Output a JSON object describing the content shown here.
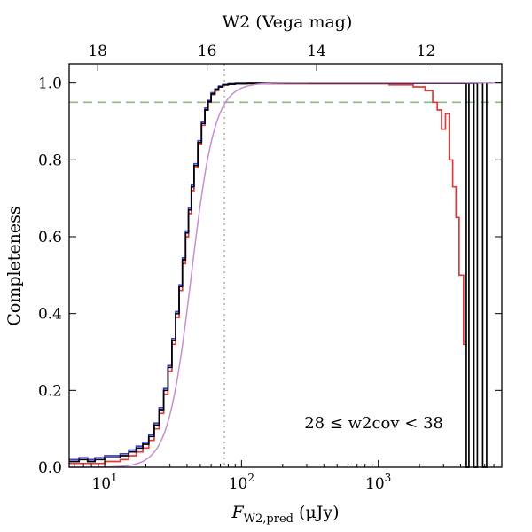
{
  "chart_data": {
    "type": "line",
    "xscale": "log",
    "xlim": [
      5.5,
      8000
    ],
    "ylim": [
      0,
      1.05
    ],
    "xlabel": "F",
    "xlabel_sub": "W2,pred",
    "xlabel_unit": " (μJy)",
    "ylabel": "Completeness",
    "top_axis_label": "W2 (Vega mag)",
    "annotation": "28 ≤ w2cov < 38",
    "x_ticks": [
      {
        "value": 10,
        "base": "10",
        "exp": "1"
      },
      {
        "value": 100,
        "base": "10",
        "exp": "2"
      },
      {
        "value": 1000,
        "base": "10",
        "exp": "3"
      }
    ],
    "y_ticks": [
      "0.0",
      "0.2",
      "0.4",
      "0.6",
      "0.8",
      "1.0"
    ],
    "top_ticks": [
      {
        "label": "18",
        "flux": 8.89
      },
      {
        "label": "16",
        "flux": 56.1
      },
      {
        "label": "14",
        "flux": 354
      },
      {
        "label": "12",
        "flux": 2233
      }
    ],
    "hlines": [
      {
        "y": 0.95,
        "style": "dashed",
        "color": "#8fba7f"
      }
    ],
    "vlines": [
      {
        "x": 75,
        "style": "dotted",
        "color": "#b8b2a8"
      }
    ],
    "series": [
      {
        "color": "#e03a3a",
        "style": "step",
        "x": [
          5.5,
          6.5,
          7.5,
          8.5,
          10,
          12,
          13,
          15,
          17,
          19,
          21,
          23,
          25,
          27,
          29,
          31,
          33,
          35,
          37,
          39,
          41,
          43,
          45,
          48,
          51,
          54,
          57,
          60,
          64,
          68,
          73,
          80,
          90,
          110,
          150,
          300,
          700,
          1200,
          1800,
          2200,
          2500,
          2700,
          2900,
          3100,
          3300,
          3500,
          3700,
          3900,
          4200
        ],
        "y": [
          0.01,
          0.01,
          0.01,
          0.01,
          0.015,
          0.015,
          0.02,
          0.03,
          0.04,
          0.05,
          0.07,
          0.1,
          0.14,
          0.19,
          0.25,
          0.32,
          0.39,
          0.46,
          0.53,
          0.6,
          0.66,
          0.72,
          0.78,
          0.84,
          0.89,
          0.93,
          0.95,
          0.97,
          0.98,
          0.99,
          0.995,
          0.997,
          0.998,
          0.998,
          0.998,
          0.998,
          0.998,
          0.995,
          0.99,
          0.98,
          0.95,
          0.93,
          0.88,
          0.92,
          0.8,
          0.73,
          0.65,
          0.5,
          0.32
        ]
      },
      {
        "color": "#3a3ae0",
        "style": "step",
        "x": [
          5.5,
          6.5,
          7.5,
          8.5,
          10,
          12,
          13,
          15,
          17,
          19,
          21,
          23,
          25,
          27,
          29,
          31,
          33,
          35,
          37,
          39,
          41,
          43,
          45,
          48,
          51,
          54,
          57,
          60,
          64,
          68,
          73,
          80,
          90,
          110,
          150,
          300,
          700,
          1500,
          3000,
          5000
        ],
        "y": [
          0.02,
          0.025,
          0.02,
          0.025,
          0.03,
          0.03,
          0.035,
          0.045,
          0.055,
          0.065,
          0.085,
          0.115,
          0.155,
          0.205,
          0.265,
          0.335,
          0.405,
          0.475,
          0.545,
          0.615,
          0.675,
          0.735,
          0.79,
          0.85,
          0.9,
          0.935,
          0.955,
          0.975,
          0.985,
          0.992,
          0.996,
          0.998,
          0.999,
          0.999,
          0.999,
          0.999,
          0.999,
          0.999,
          0.999,
          0.999
        ]
      },
      {
        "color": "#000000",
        "style": "step",
        "x": [
          5.5,
          6.5,
          7.5,
          8.5,
          10,
          12,
          13,
          15,
          17,
          19,
          21,
          23,
          25,
          27,
          29,
          31,
          33,
          35,
          37,
          39,
          41,
          43,
          45,
          48,
          51,
          54,
          57,
          60,
          64,
          68,
          73,
          80,
          90,
          110,
          150,
          300,
          700,
          1500,
          3000,
          4400,
          4600,
          5000,
          5300,
          5800,
          6200,
          6500
        ],
        "y": [
          0.015,
          0.02,
          0.015,
          0.02,
          0.025,
          0.025,
          0.03,
          0.04,
          0.05,
          0.06,
          0.08,
          0.11,
          0.15,
          0.2,
          0.26,
          0.33,
          0.4,
          0.47,
          0.54,
          0.61,
          0.67,
          0.73,
          0.785,
          0.845,
          0.895,
          0.93,
          0.952,
          0.972,
          0.983,
          0.99,
          0.995,
          0.997,
          0.998,
          0.999,
          0.999,
          0.999,
          0.999,
          0.999,
          0.999,
          0.0,
          1.0,
          0.0,
          1.0,
          0.0,
          1.0,
          1.0
        ]
      },
      {
        "color": "#c48fd0",
        "style": "curve",
        "model": {
          "type": "logistic_log10",
          "center_flux": 43,
          "width_dex": 0.085
        },
        "x": [
          5.5,
          8000
        ]
      }
    ]
  }
}
